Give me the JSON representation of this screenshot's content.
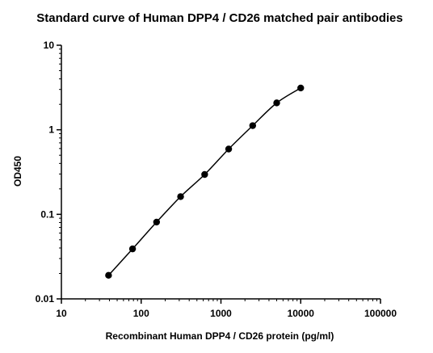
{
  "chart_data": {
    "type": "scatter",
    "title": "Standard curve of Human DPP4 / CD26 matched pair antibodies",
    "xlabel": "Recombinant Human DPP4 / CD26 protein (pg/ml)",
    "ylabel": "OD450",
    "x_scale": "log",
    "y_scale": "log",
    "xlim": [
      10,
      100000
    ],
    "ylim": [
      0.01,
      10
    ],
    "x_ticks": [
      10,
      100,
      1000,
      10000,
      100000
    ],
    "x_tick_labels": [
      "10",
      "100",
      "1000",
      "10000",
      "100000"
    ],
    "y_ticks": [
      0.01,
      0.1,
      1,
      10
    ],
    "y_tick_labels": [
      "0.01",
      "0.1",
      "1",
      "10"
    ],
    "grid": false,
    "legend": "none",
    "marker_color": "#000000",
    "line_color": "#000000",
    "series": [
      {
        "x": [
          39,
          78,
          156,
          312,
          625,
          1250,
          2500,
          5000,
          10000
        ],
        "y": [
          0.019,
          0.039,
          0.081,
          0.162,
          0.296,
          0.592,
          1.12,
          2.08,
          3.12
        ]
      }
    ]
  }
}
